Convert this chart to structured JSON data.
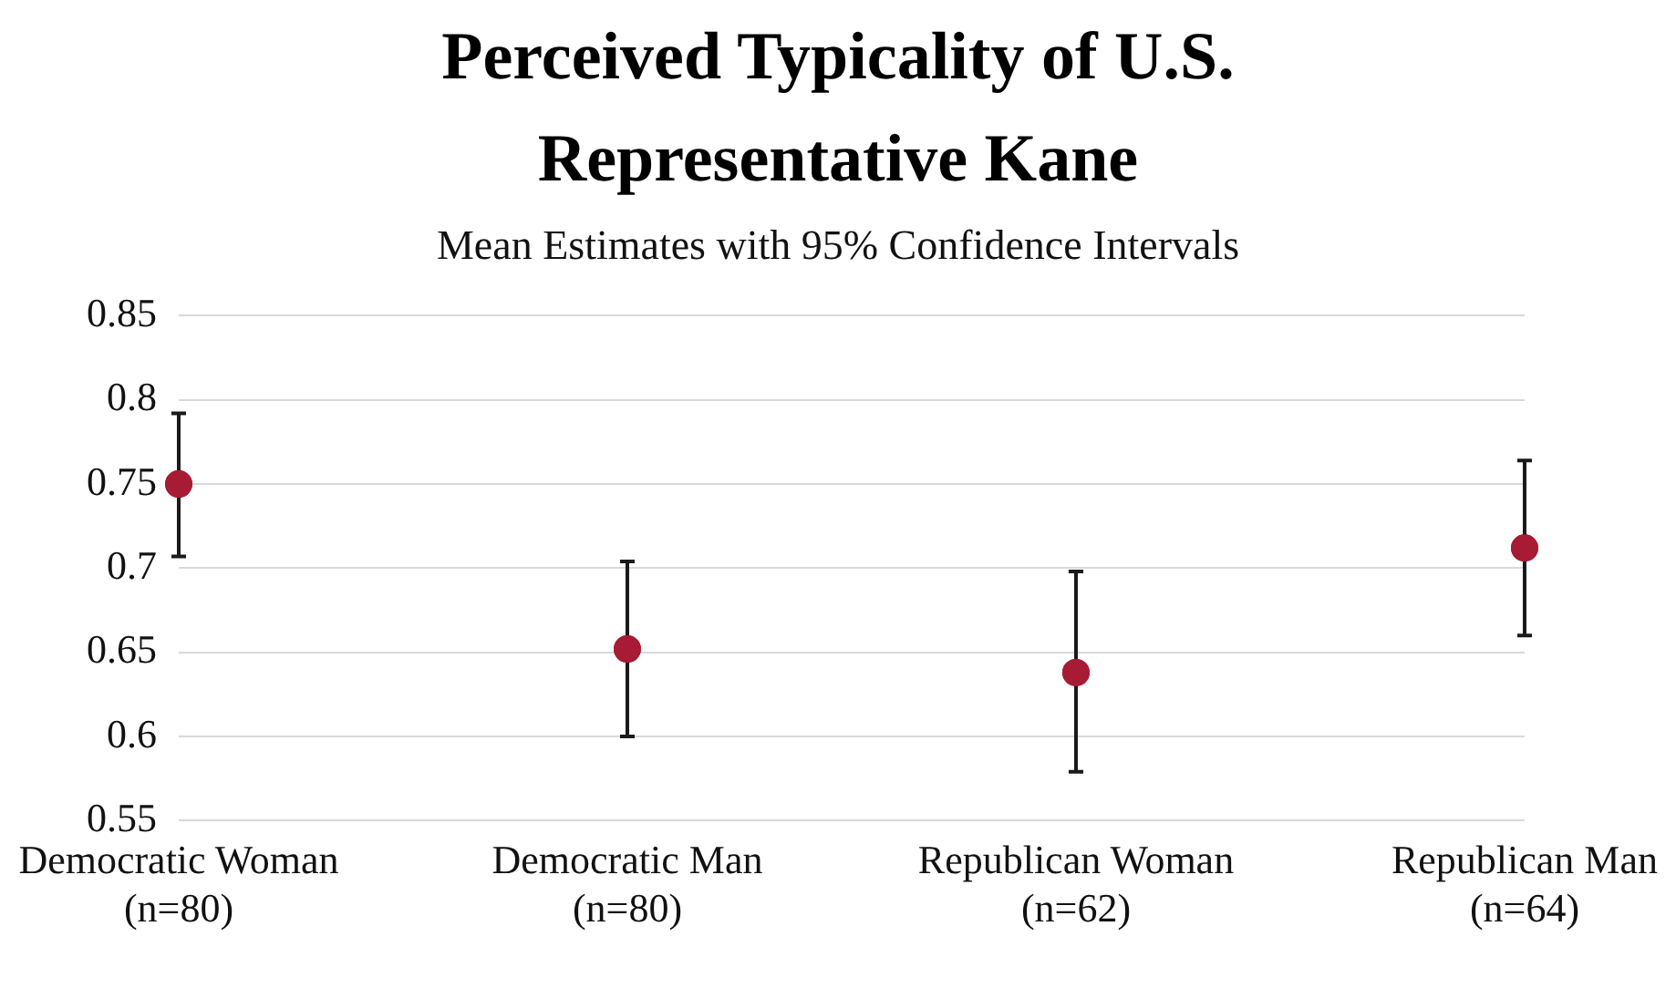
{
  "chart_data": {
    "type": "scatter",
    "title": "Perceived Typicality of U.S. Representative Kane",
    "subtitle": "Mean Estimates with 95% Confidence Intervals",
    "categories": [
      "Democratic Woman\n(n=80)",
      "Democratic Man\n(n=80)",
      "Republican Woman\n(n=62)",
      "Republican Man\n(n=64)"
    ],
    "values": [
      0.75,
      0.652,
      0.638,
      0.712
    ],
    "errors": [
      [
        0.707,
        0.792
      ],
      [
        0.6,
        0.704
      ],
      [
        0.579,
        0.698
      ],
      [
        0.66,
        0.764
      ]
    ],
    "color": "#a71c34",
    "marker": "circle",
    "ylim": [
      0.55,
      0.85
    ],
    "yticks": [
      0.55,
      0.6,
      0.65,
      0.7,
      0.75,
      0.8,
      0.85
    ],
    "grid": "y"
  }
}
